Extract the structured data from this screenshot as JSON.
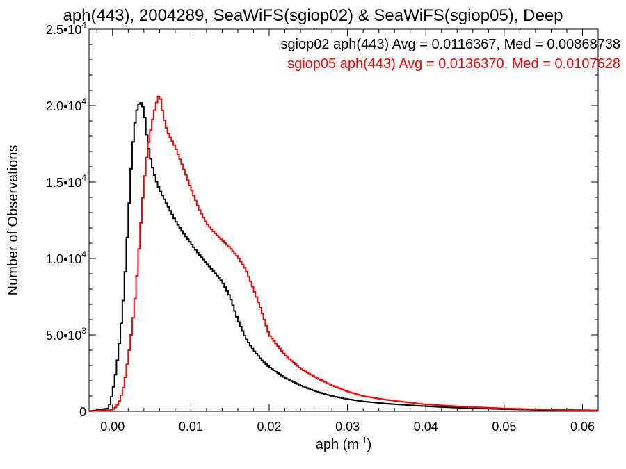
{
  "chart_data": {
    "type": "line",
    "title": "aph(443), 2004289, SeaWiFS(sgiop02) & SeaWiFS(sgiop05), Deep",
    "xlabel": "aph (m",
    "xlabel_exponent": "-1",
    "xlabel_close": ")",
    "ylabel": "Number of Observations",
    "xlim": [
      -0.003,
      0.062
    ],
    "ylim": [
      0,
      25000
    ],
    "x_ticks": [
      0.0,
      0.01,
      0.02,
      0.03,
      0.04,
      0.05,
      0.06
    ],
    "x_tick_labels": [
      "0.00",
      "0.01",
      "0.02",
      "0.03",
      "0.04",
      "0.05",
      "0.06"
    ],
    "y_ticks": [
      0,
      5000,
      10000,
      15000,
      20000,
      25000
    ],
    "y_tick_labels": [
      {
        "mantissa": "0",
        "exponent": ""
      },
      {
        "mantissa": "5.0•10",
        "exponent": "3"
      },
      {
        "mantissa": "1.0•10",
        "exponent": "4"
      },
      {
        "mantissa": "1.5•10",
        "exponent": "4"
      },
      {
        "mantissa": "2.0•10",
        "exponent": "4"
      },
      {
        "mantissa": "2.5•10",
        "exponent": "4"
      }
    ],
    "legend_placement": "top-right",
    "series": [
      {
        "name": "sgiop02 aph(443) Avg = 0.0116367, Med = 0.00868738",
        "color": "#000000",
        "step": true,
        "x": [
          -0.003,
          -0.0005,
          0.0,
          0.0005,
          0.001,
          0.0015,
          0.002,
          0.0025,
          0.003,
          0.0035,
          0.004,
          0.0045,
          0.005,
          0.0055,
          0.006,
          0.007,
          0.008,
          0.009,
          0.01,
          0.011,
          0.012,
          0.013,
          0.014,
          0.015,
          0.016,
          0.017,
          0.018,
          0.019,
          0.02,
          0.022,
          0.024,
          0.026,
          0.028,
          0.03,
          0.032,
          0.035,
          0.04,
          0.045,
          0.05,
          0.055,
          0.06,
          0.062
        ],
        "values": [
          0,
          200,
          1200,
          2800,
          5000,
          8000,
          12500,
          17000,
          19500,
          20300,
          19800,
          17500,
          16200,
          15200,
          14500,
          13500,
          12500,
          11700,
          11000,
          10300,
          9700,
          9100,
          8500,
          7500,
          6000,
          4800,
          4000,
          3400,
          2900,
          2200,
          1700,
          1300,
          1000,
          800,
          650,
          500,
          330,
          210,
          140,
          90,
          60,
          50
        ]
      },
      {
        "name": "sgiop05 aph(443) Avg = 0.0136370, Med = 0.0107628",
        "color": "#ff0000",
        "step": true,
        "x": [
          -0.003,
          0.0,
          0.0005,
          0.001,
          0.0015,
          0.002,
          0.0025,
          0.003,
          0.0035,
          0.004,
          0.0045,
          0.005,
          0.0055,
          0.006,
          0.0065,
          0.007,
          0.008,
          0.009,
          0.01,
          0.011,
          0.012,
          0.013,
          0.014,
          0.015,
          0.016,
          0.017,
          0.018,
          0.019,
          0.02,
          0.022,
          0.024,
          0.026,
          0.028,
          0.03,
          0.032,
          0.035,
          0.04,
          0.045,
          0.05,
          0.055,
          0.06,
          0.062
        ],
        "values": [
          0,
          100,
          300,
          800,
          1800,
          3500,
          5500,
          8000,
          11500,
          14800,
          17200,
          18800,
          20000,
          20800,
          19300,
          18300,
          17300,
          16000,
          14600,
          13300,
          12300,
          11700,
          11200,
          10700,
          10100,
          9300,
          8000,
          6600,
          5000,
          3700,
          2800,
          2200,
          1700,
          1300,
          1000,
          750,
          450,
          300,
          190,
          120,
          80,
          60
        ]
      }
    ]
  }
}
